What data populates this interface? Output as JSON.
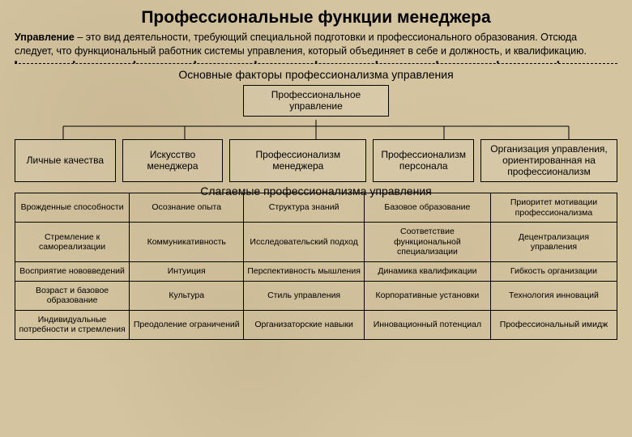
{
  "colors": {
    "background": "#d4c4a0",
    "text": "#000000",
    "border": "#000000"
  },
  "title": "Профессиональные функции менеджера",
  "intro_bold": "Управление",
  "intro_rest": " – это вид деятельности, требующий специальной подготовки и профессионального образования. Отсюда следует, что функциональный работник системы управления, который объединяет в себе и должность, и квалификацию.",
  "subhead": "Основные факторы профессионализма управления",
  "topbox": "Профессиональное управление",
  "tree": {
    "nodes": [
      "Личные качества",
      "Искусство менеджера",
      "Профессионализм менеджера",
      "Профессионализм персонала",
      "Организация управления, ориентированная на профессионализм"
    ],
    "line_color": "#000000"
  },
  "midhead": "Слагаемые профессионализма управления",
  "table": {
    "rows": [
      [
        "Врожденные способности",
        "Осознание опыта",
        "Структура знаний",
        "Базовое образование",
        "Приоритет мотивации профессионализма"
      ],
      [
        "Стремление к самореализации",
        "Коммуникативность",
        "Исследовательский подход",
        "Соответствие функциональной специализации",
        "Децентрализация управления"
      ],
      [
        "Восприятие нововведений",
        "Интуиция",
        "Перспективность мышления",
        "Динамика квалификации",
        "Гибкость организации"
      ],
      [
        "Возраст и базовое образование",
        "Культура",
        "Стиль управления",
        "Корпоративные установки",
        "Технология инноваций"
      ],
      [
        "Индивидуальные потребности и стремления",
        "Преодоление ограничений",
        "Организаторские навыки",
        "Инновационный потенциал",
        "Профессиональный имидж"
      ]
    ],
    "font_size": 10.5,
    "border_color": "#000000"
  }
}
